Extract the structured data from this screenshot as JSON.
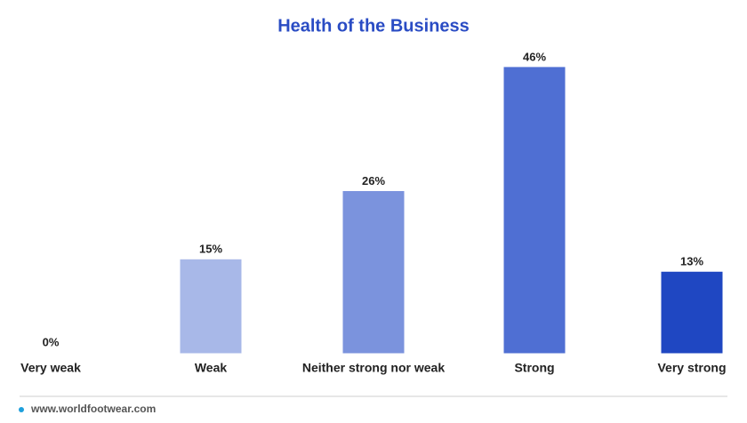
{
  "chart_data": {
    "type": "bar",
    "title": "Health of the Business",
    "categories": [
      "Very weak",
      "Weak",
      "Neither strong nor weak",
      "Strong",
      "Very strong"
    ],
    "values": [
      0,
      15,
      26,
      46,
      13
    ],
    "value_labels": [
      "0%",
      "15%",
      "26%",
      "46%",
      "13%"
    ],
    "colors": [
      "#dbe2f5",
      "#a8b8e8",
      "#7b93dd",
      "#4f6fd3",
      "#1f47c2"
    ],
    "source": "www.worldfootwear.com"
  }
}
